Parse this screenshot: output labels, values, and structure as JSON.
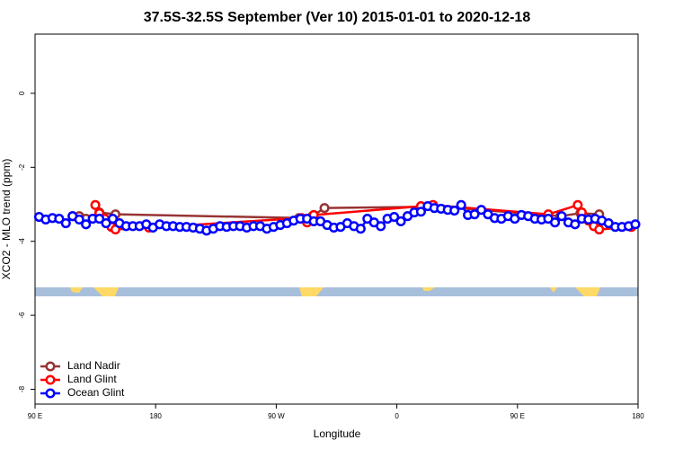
{
  "chart_data": {
    "type": "line",
    "title": "37.5S-32.5S September (Ver 10)   2015-01-01 to 2020-12-18",
    "x_label": "Longitude",
    "y_label": "XCO2 - MLO trend (ppm)",
    "xlim": [
      90,
      540
    ],
    "xticks": [
      {
        "value": 90,
        "label": "90 E"
      },
      180,
      {
        "value": 270,
        "label": "90 W"
      },
      {
        "value": 360,
        "label": "0"
      },
      {
        "value": 450,
        "label": "90 E"
      },
      {
        "value": 540,
        "label": "180"
      }
    ],
    "ylim": [
      -8.4,
      1.6
    ],
    "yticks": [
      0,
      -2,
      -4,
      -6,
      -8
    ],
    "legend": "bottom-left",
    "series": [
      {
        "name": "Land Nadir",
        "color": "#993333",
        "x": [
          118,
          123,
          128,
          138,
          150,
          287,
          297,
          306,
          378,
          387,
          482,
          497,
          511
        ],
        "values": [
          -3.32,
          -3.32,
          -3.39,
          -3.22,
          -3.27,
          -3.37,
          -3.32,
          -3.1,
          -3.07,
          -3.05,
          -3.32,
          -3.24,
          -3.27
        ]
      },
      {
        "name": "Land Glint",
        "color": "#ff0000",
        "x": [
          135,
          138,
          142,
          147,
          150,
          175,
          289,
          293,
          298,
          378,
          387,
          473,
          495,
          498,
          503,
          507,
          511,
          535
        ],
        "values": [
          -3.02,
          -3.24,
          -3.39,
          -3.61,
          -3.68,
          -3.63,
          -3.37,
          -3.49,
          -3.29,
          -3.05,
          -3.02,
          -3.27,
          -3.02,
          -3.22,
          -3.44,
          -3.59,
          -3.68,
          -3.61
        ]
      },
      {
        "name": "Ocean Glint",
        "color": "#0000ff",
        "x": [
          93,
          98,
          103,
          108,
          113,
          118,
          123,
          128,
          133,
          138,
          143,
          148,
          153,
          158,
          163,
          168,
          173,
          178,
          183,
          188,
          193,
          198,
          203,
          208,
          213,
          218,
          223,
          228,
          233,
          238,
          243,
          248,
          253,
          258,
          263,
          268,
          273,
          278,
          283,
          288,
          293,
          298,
          303,
          308,
          313,
          318,
          323,
          328,
          333,
          338,
          343,
          348,
          353,
          358,
          363,
          368,
          373,
          378,
          383,
          388,
          393,
          398,
          403,
          408,
          413,
          418,
          423,
          428,
          433,
          438,
          443,
          448,
          453,
          458,
          463,
          468,
          473,
          478,
          483,
          488,
          493,
          498,
          503,
          508,
          513,
          518,
          523,
          528,
          533,
          538
        ],
        "values": [
          -3.34,
          -3.41,
          -3.37,
          -3.39,
          -3.51,
          -3.32,
          -3.41,
          -3.54,
          -3.39,
          -3.39,
          -3.51,
          -3.39,
          -3.51,
          -3.59,
          -3.59,
          -3.59,
          -3.54,
          -3.63,
          -3.54,
          -3.59,
          -3.59,
          -3.61,
          -3.61,
          -3.63,
          -3.66,
          -3.71,
          -3.66,
          -3.59,
          -3.61,
          -3.59,
          -3.59,
          -3.63,
          -3.59,
          -3.59,
          -3.66,
          -3.61,
          -3.56,
          -3.51,
          -3.44,
          -3.39,
          -3.39,
          -3.46,
          -3.46,
          -3.56,
          -3.63,
          -3.61,
          -3.51,
          -3.59,
          -3.66,
          -3.39,
          -3.49,
          -3.59,
          -3.39,
          -3.34,
          -3.46,
          -3.32,
          -3.22,
          -3.2,
          -3.05,
          -3.1,
          -3.12,
          -3.15,
          -3.17,
          -3.02,
          -3.29,
          -3.27,
          -3.15,
          -3.27,
          -3.37,
          -3.39,
          -3.32,
          -3.39,
          -3.29,
          -3.32,
          -3.39,
          -3.41,
          -3.39,
          -3.49,
          -3.32,
          -3.49,
          -3.54,
          -3.39,
          -3.41,
          -3.39,
          -3.44,
          -3.51,
          -3.61,
          -3.61,
          -3.59,
          -3.54
        ]
      }
    ]
  }
}
